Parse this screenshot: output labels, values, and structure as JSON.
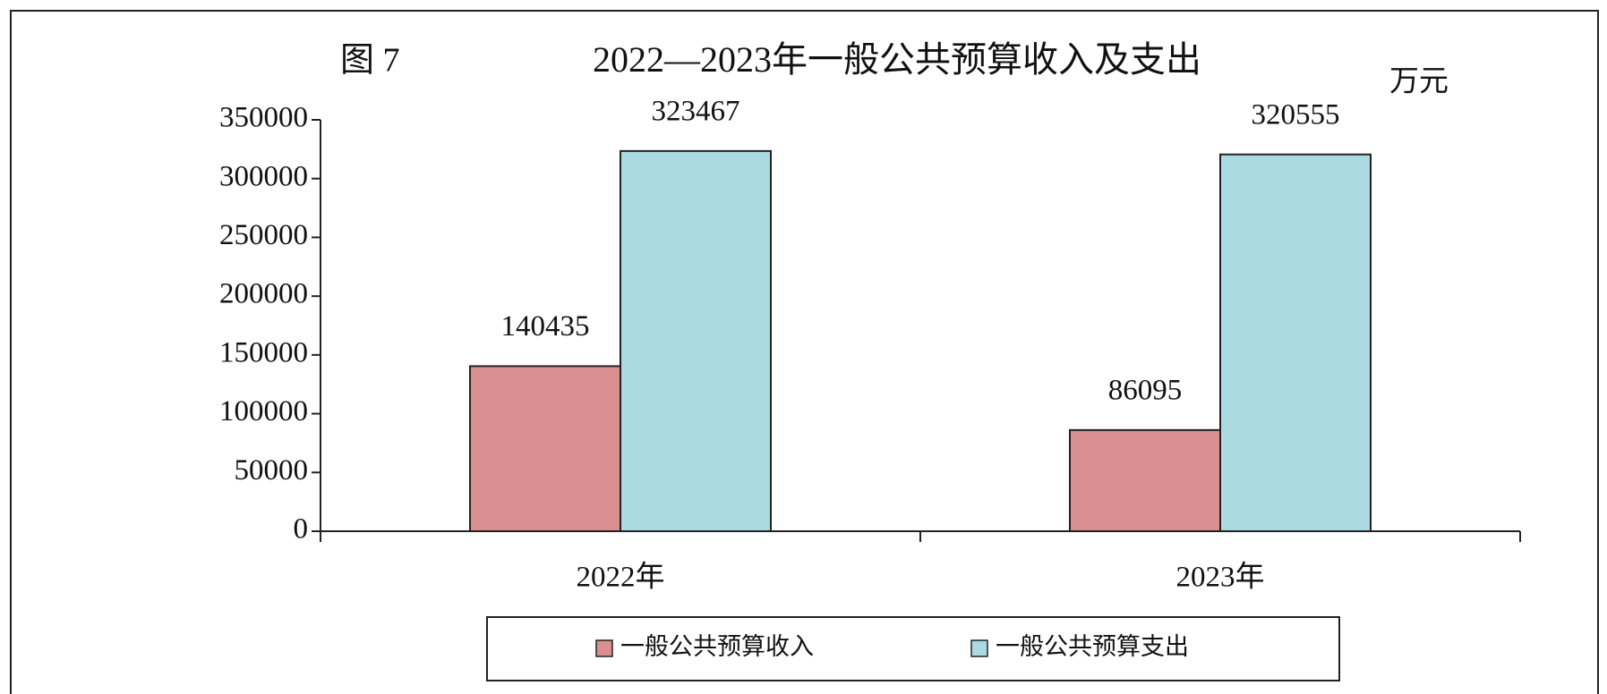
{
  "chart_data": {
    "type": "bar",
    "figure_label": "图 7",
    "title": "2022—2023年一般公共预算收入及支出",
    "unit": "万元",
    "categories": [
      "2022年",
      "2023年"
    ],
    "series": [
      {
        "name": "一般公共预算收入",
        "color": "#d98f8f",
        "values": [
          140435,
          86095
        ]
      },
      {
        "name": "一般公共预算支出",
        "color": "#acdae3",
        "values": [
          323467,
          320555
        ]
      }
    ],
    "ylim": [
      0,
      350000
    ],
    "yticks": [
      0,
      50000,
      100000,
      150000,
      200000,
      250000,
      300000,
      350000
    ]
  }
}
